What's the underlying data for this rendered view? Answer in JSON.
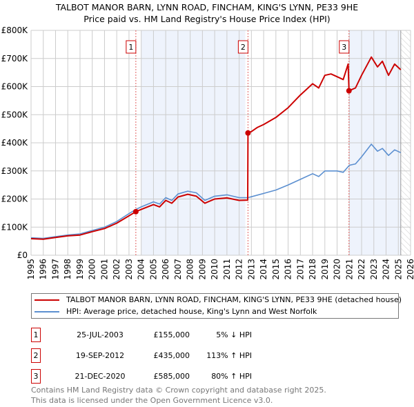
{
  "chart_data": {
    "type": "line",
    "title": "TALBOT MANOR BARN, LYNN ROAD, FINCHAM, KING'S LYNN, PE33 9HE",
    "subtitle": "Price paid vs. HM Land Registry's House Price Index (HPI)",
    "xlim": [
      1995,
      2026
    ],
    "ylim": [
      0,
      800000
    ],
    "x_ticks": [
      "1995",
      "1996",
      "1997",
      "1998",
      "1999",
      "2000",
      "2001",
      "2002",
      "2003",
      "2004",
      "2005",
      "2006",
      "2007",
      "2008",
      "2009",
      "2010",
      "2011",
      "2012",
      "2013",
      "2014",
      "2015",
      "2016",
      "2017",
      "2018",
      "2019",
      "2020",
      "2021",
      "2022",
      "2023",
      "2024",
      "2025",
      "2026"
    ],
    "y_ticks": [
      {
        "v": 0,
        "label": "£0"
      },
      {
        "v": 100000,
        "label": "£100K"
      },
      {
        "v": 200000,
        "label": "£200K"
      },
      {
        "v": 300000,
        "label": "£300K"
      },
      {
        "v": 400000,
        "label": "£400K"
      },
      {
        "v": 500000,
        "label": "£500K"
      },
      {
        "v": 600000,
        "label": "£600K"
      },
      {
        "v": 700000,
        "label": "£700K"
      },
      {
        "v": 800000,
        "label": "£800K"
      }
    ],
    "grid": true,
    "shaded_ranges": [
      [
        2004,
        2012.5
      ],
      [
        2021,
        2025.2
      ]
    ],
    "hatched_range": [
      2025.2,
      2026
    ],
    "series": [
      {
        "name": "TALBOT MANOR BARN, LYNN ROAD, FINCHAM, KING'S LYNN, PE33 9HE (detached house)",
        "color": "#cc0000",
        "x": [
          1995,
          1996,
          1997,
          1998,
          1999,
          2000,
          2001,
          2002,
          2003,
          2003.56,
          2004,
          2005,
          2005.5,
          2006,
          2006.5,
          2007,
          2007.8,
          2008.5,
          2009.2,
          2010,
          2011,
          2012,
          2012.7,
          2012.72,
          2013,
          2013.5,
          2014,
          2015,
          2016,
          2017,
          2018,
          2018.5,
          2019,
          2019.5,
          2020,
          2020.5,
          2020.9,
          2020.97,
          2021.5,
          2022,
          2022.8,
          2023.3,
          2023.7,
          2024.2,
          2024.7,
          2025.2
        ],
        "y": [
          59000,
          57000,
          63000,
          69000,
          72000,
          84000,
          95000,
          114000,
          140000,
          155000,
          163000,
          180000,
          172000,
          195000,
          185000,
          207000,
          217000,
          210000,
          185000,
          200000,
          204000,
          195000,
          196000,
          435000,
          440000,
          455000,
          465000,
          490000,
          525000,
          570000,
          610000,
          595000,
          640000,
          645000,
          635000,
          625000,
          680000,
          585000,
          595000,
          640000,
          705000,
          670000,
          690000,
          640000,
          680000,
          660000
        ]
      },
      {
        "name": "HPI: Average price, detached house, King's Lynn and West Norfolk",
        "color": "#5b8fd0",
        "x": [
          1995,
          1996,
          1997,
          1998,
          1999,
          2000,
          2001,
          2002,
          2003,
          2003.56,
          2004,
          2005,
          2005.5,
          2006,
          2006.5,
          2007,
          2007.8,
          2008.5,
          2009.2,
          2010,
          2011,
          2012,
          2012.72,
          2013,
          2014,
          2015,
          2016,
          2017,
          2018,
          2018.5,
          2019,
          2020,
          2020.5,
          2021,
          2021.5,
          2022,
          2022.8,
          2023.3,
          2023.7,
          2024.2,
          2024.7,
          2025.2
        ],
        "y": [
          62000,
          60000,
          66000,
          72000,
          76000,
          88000,
          100000,
          120000,
          148000,
          163000,
          172000,
          190000,
          182000,
          205000,
          195000,
          218000,
          228000,
          222000,
          195000,
          210000,
          215000,
          205000,
          205000,
          208000,
          220000,
          232000,
          250000,
          270000,
          290000,
          280000,
          300000,
          300000,
          295000,
          320000,
          325000,
          350000,
          395000,
          370000,
          380000,
          355000,
          375000,
          365000
        ]
      }
    ],
    "sales": [
      {
        "id": "1",
        "x": 2003.56,
        "y": 155000
      },
      {
        "id": "2",
        "x": 2012.72,
        "y": 435000
      },
      {
        "id": "3",
        "x": 2020.97,
        "y": 585000
      }
    ]
  },
  "legend": {
    "property": "TALBOT MANOR BARN, LYNN ROAD, FINCHAM, KING'S LYNN, PE33 9HE (detached house)",
    "hpi": "HPI: Average price, detached house, King's Lynn and West Norfolk"
  },
  "transactions": [
    {
      "num": "1",
      "date": "25-JUL-2003",
      "price": "£155,000",
      "pct": "5% ↓ HPI"
    },
    {
      "num": "2",
      "date": "19-SEP-2012",
      "price": "£435,000",
      "pct": "113% ↑ HPI"
    },
    {
      "num": "3",
      "date": "21-DEC-2020",
      "price": "£585,000",
      "pct": "80% ↑ HPI"
    }
  ],
  "footer": {
    "line1": "Contains HM Land Registry data © Crown copyright and database right 2025.",
    "line2": "This data is licensed under the Open Government Licence v3.0."
  }
}
